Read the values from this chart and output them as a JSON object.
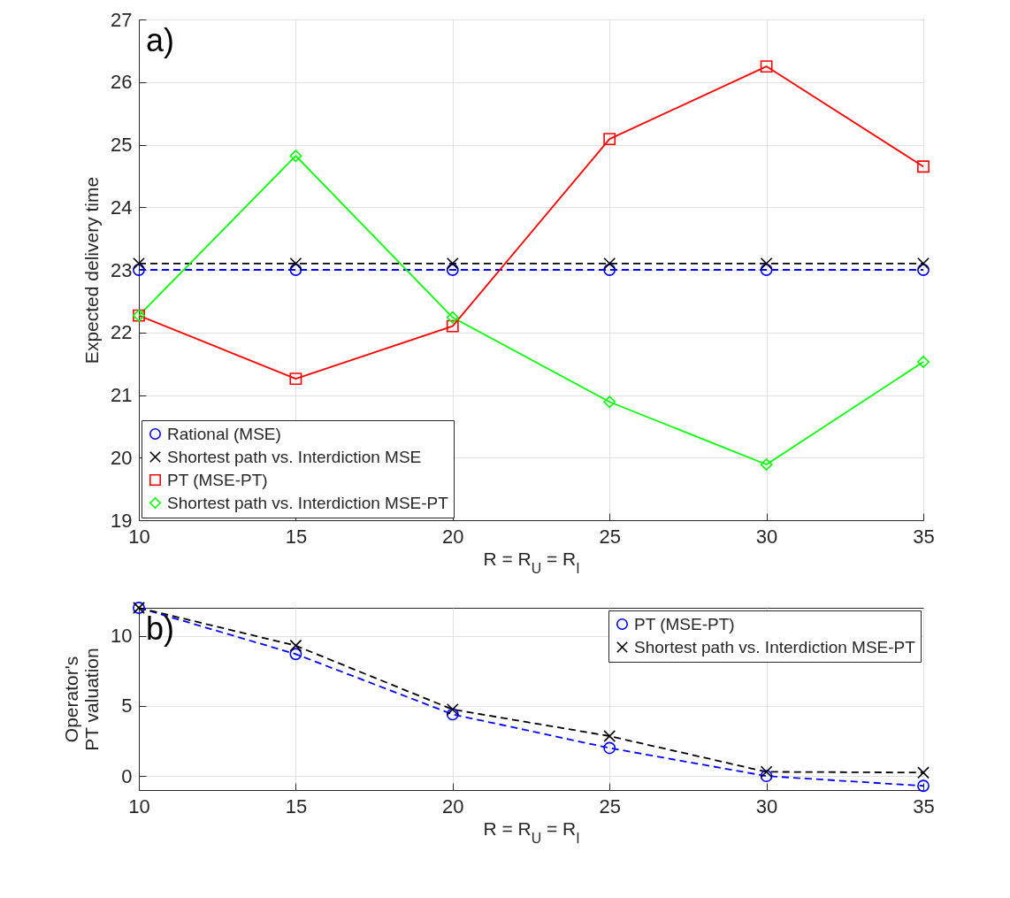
{
  "chart_data": [
    {
      "type": "line",
      "xlabel": "R = R$_{U}$ = R$_{I}$",
      "ylabel": "Expected delivery time",
      "x": [
        10,
        15,
        20,
        25,
        30,
        35
      ],
      "xlim": [
        10,
        35
      ],
      "xticks": [
        10,
        15,
        20,
        25,
        30,
        35
      ],
      "ylim": [
        19,
        27
      ],
      "yticks": [
        19,
        20,
        21,
        22,
        23,
        24,
        25,
        26,
        27
      ],
      "grid": true,
      "legend": "bottom left",
      "annotations": [
        "a)"
      ],
      "series": [
        {
          "name": "Rational (MSE)",
          "color": "#0000ff",
          "marker": "circle",
          "line_style": "dashed",
          "values": [
            23.0,
            23.0,
            23.0,
            23.0,
            23.0,
            23.0
          ]
        },
        {
          "name": "Shortest path vs. Interdiction MSE",
          "color": "#000000",
          "marker": "cross",
          "line_style": "dashed",
          "values": [
            23.1,
            23.1,
            23.1,
            23.1,
            23.1,
            23.1
          ]
        },
        {
          "name": "PT (MSE-PT)",
          "color": "#ff0000",
          "marker": "square",
          "line_style": "solid",
          "values": [
            22.27,
            21.26,
            22.1,
            25.09,
            26.25,
            24.65
          ]
        },
        {
          "name": "Shortest path vs. Interdiction MSE-PT",
          "color": "#00ff00",
          "marker": "diamond",
          "line_style": "solid",
          "values": [
            22.27,
            24.82,
            22.24,
            20.89,
            19.89,
            21.53
          ]
        }
      ]
    },
    {
      "type": "line",
      "xlabel": "R = R$_{U}$ = R$_{I}$",
      "ylabel": "Operator's\nPT valuation",
      "x": [
        10,
        15,
        20,
        25,
        30,
        35
      ],
      "xlim": [
        10,
        35
      ],
      "xticks": [
        10,
        15,
        20,
        25,
        30,
        35
      ],
      "ylim": [
        -1,
        12
      ],
      "yticks": [
        0,
        5,
        10
      ],
      "grid": true,
      "legend": "top right",
      "annotations": [
        "b)"
      ],
      "series": [
        {
          "name": "PT (MSE-PT)",
          "color": "#0000ff",
          "marker": "circle",
          "line_style": "dashed",
          "values": [
            12.0,
            8.7,
            4.4,
            2.0,
            0.0,
            -0.7
          ]
        },
        {
          "name": "Shortest path vs. Interdiction MSE-PT",
          "color": "#000000",
          "marker": "cross",
          "line_style": "dashed",
          "values": [
            12.0,
            9.3,
            4.75,
            2.85,
            0.3,
            0.25
          ]
        }
      ]
    }
  ]
}
